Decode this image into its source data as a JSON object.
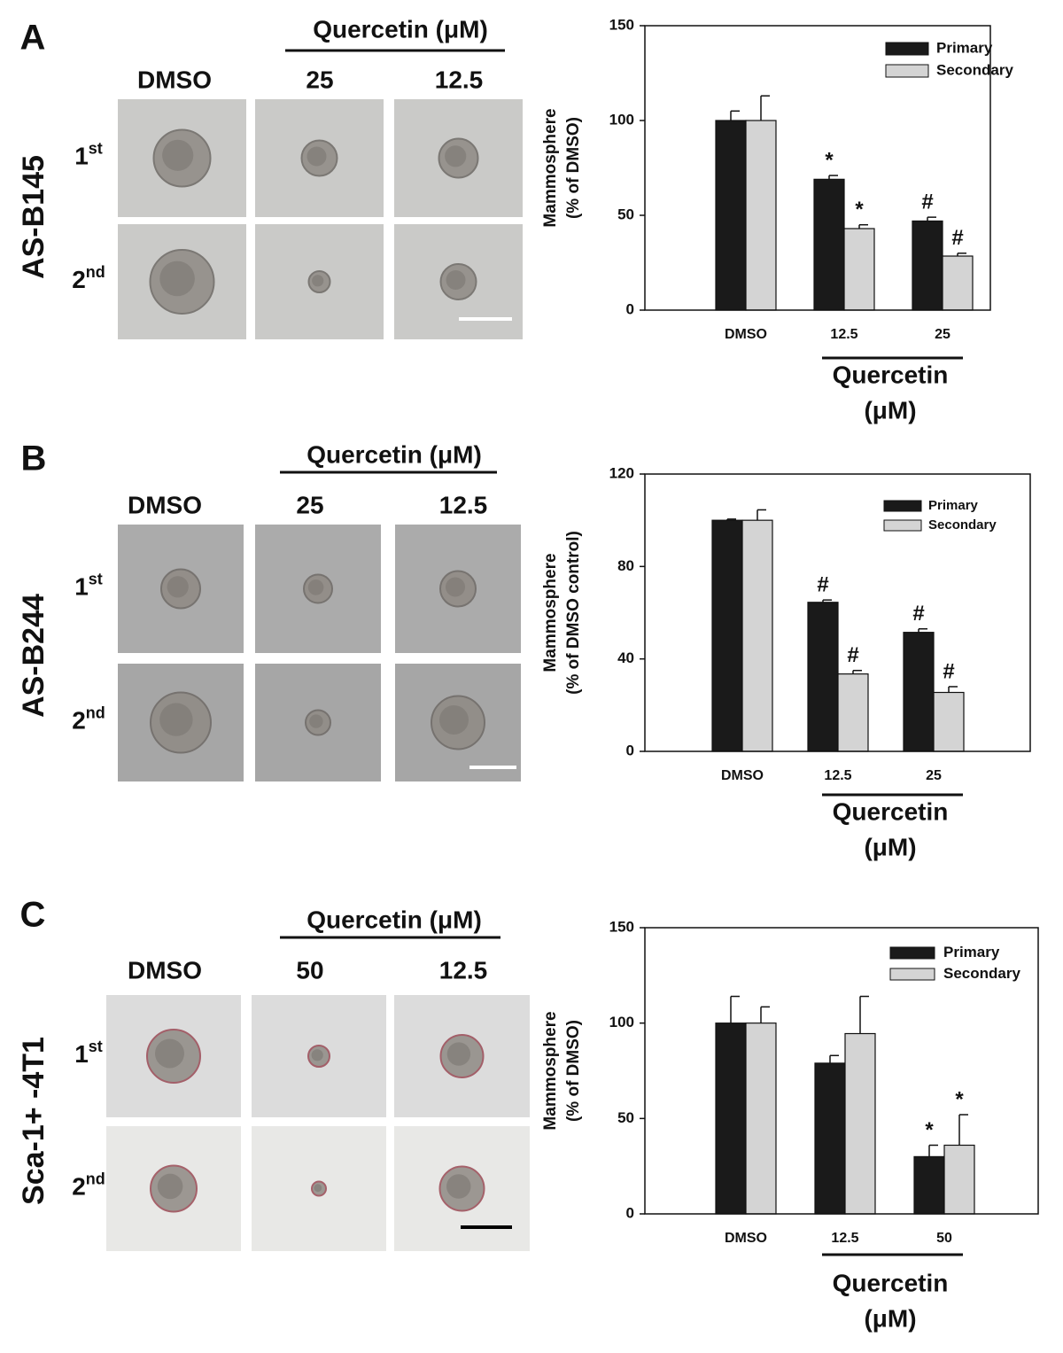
{
  "panels": [
    {
      "letter": "A",
      "cell_line": "AS-B145",
      "group_label": "Quercetin (μM)",
      "columns": [
        "DMSO",
        "25",
        "12.5"
      ],
      "rows": [
        {
          "base": "1",
          "sup": "st"
        },
        {
          "base": "2",
          "sup": "nd"
        }
      ]
    },
    {
      "letter": "B",
      "cell_line": "AS-B244",
      "group_label": "Quercetin (μM)",
      "columns": [
        "DMSO",
        "25",
        "12.5"
      ],
      "rows": [
        {
          "base": "1",
          "sup": "st"
        },
        {
          "base": "2",
          "sup": "nd"
        }
      ]
    },
    {
      "letter": "C",
      "cell_line": "Sca-1+ -4T1",
      "group_label": "Quercetin (μM)",
      "columns": [
        "DMSO",
        "50",
        "12.5"
      ],
      "rows": [
        {
          "base": "1",
          "sup": "st"
        },
        {
          "base": "2",
          "sup": "nd"
        }
      ]
    }
  ],
  "chart_data": [
    {
      "type": "bar",
      "ylabel": [
        "Mammosphere",
        "(% of DMSO)"
      ],
      "categories": [
        "DMSO",
        "12.5",
        "25"
      ],
      "x_group_label": [
        "Quercetin",
        "(μM)"
      ],
      "ylim": [
        0,
        150
      ],
      "yticks": [
        0,
        50,
        100,
        150
      ],
      "series": [
        {
          "name": "Primary",
          "color": "#1a1a1a",
          "values": [
            100,
            69,
            47
          ],
          "errors": [
            5,
            2,
            2
          ],
          "markers": [
            null,
            "*",
            "#"
          ]
        },
        {
          "name": "Secondary",
          "color": "#d4d4d4",
          "values": [
            100,
            43,
            28.5
          ],
          "errors": [
            13,
            2,
            1.5
          ],
          "markers": [
            null,
            "*",
            "#"
          ]
        }
      ]
    },
    {
      "type": "bar",
      "ylabel": [
        "Mammosphere",
        "(% of DMSO control)"
      ],
      "categories": [
        "DMSO",
        "12.5",
        "25"
      ],
      "x_group_label": [
        "Quercetin",
        "(μM)"
      ],
      "ylim": [
        0,
        120
      ],
      "yticks": [
        0,
        40,
        80,
        120
      ],
      "series": [
        {
          "name": "Primary",
          "color": "#1a1a1a",
          "values": [
            100,
            64.5,
            51.5
          ],
          "errors": [
            0.5,
            1,
            1.5
          ],
          "markers": [
            null,
            "#",
            "#"
          ]
        },
        {
          "name": "Secondary",
          "color": "#d4d4d4",
          "values": [
            100,
            33.5,
            25.5
          ],
          "errors": [
            4.5,
            1.5,
            2.5
          ],
          "markers": [
            null,
            "#",
            "#"
          ]
        }
      ]
    },
    {
      "type": "bar",
      "ylabel": [
        "Mammosphere",
        "(% of DMSO)"
      ],
      "categories": [
        "DMSO",
        "12.5",
        "50"
      ],
      "x_group_label": [
        "Quercetin",
        "(μM)"
      ],
      "ylim": [
        0,
        150
      ],
      "yticks": [
        0,
        50,
        100,
        150
      ],
      "series": [
        {
          "name": "Primary",
          "color": "#1a1a1a",
          "values": [
            100,
            79,
            30
          ],
          "errors": [
            14,
            4,
            6
          ],
          "markers": [
            null,
            null,
            "*"
          ]
        },
        {
          "name": "Secondary",
          "color": "#d4d4d4",
          "values": [
            100,
            94.5,
            36
          ],
          "errors": [
            8.5,
            19.5,
            16
          ],
          "markers": [
            null,
            null,
            "*"
          ]
        }
      ]
    }
  ]
}
